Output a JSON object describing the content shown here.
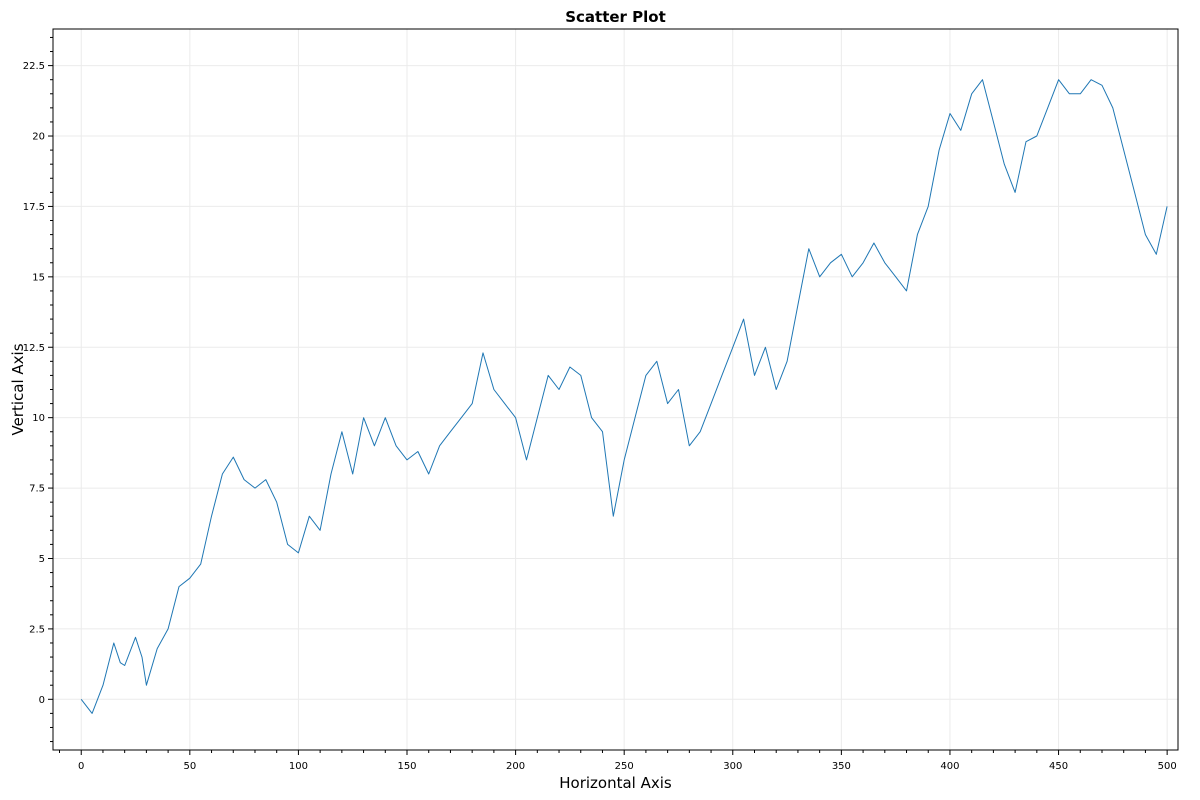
{
  "chart_data": {
    "type": "line",
    "title": "Scatter Plot",
    "xlabel": "Horizontal Axis",
    "ylabel": "Vertical Axis",
    "xlim": [
      -13,
      505
    ],
    "ylim": [
      -1.8,
      23.8
    ],
    "x_ticks": [
      0,
      50,
      100,
      150,
      200,
      250,
      300,
      350,
      400,
      450,
      500
    ],
    "y_ticks": [
      0,
      2.5,
      5,
      7.5,
      10,
      12.5,
      15,
      17.5,
      20,
      22.5
    ],
    "x_tick_labels": [
      "0",
      "50",
      "100",
      "150",
      "200",
      "250",
      "300",
      "350",
      "400",
      "450",
      "500"
    ],
    "y_tick_labels": [
      "0",
      "2.5",
      "5",
      "7.5",
      "10",
      "12.5",
      "15",
      "17.5",
      "20",
      "22.5"
    ],
    "grid": true,
    "series": [
      {
        "color": "#1f77b4",
        "x": [
          0,
          5,
          10,
          15,
          18,
          20,
          25,
          28,
          30,
          35,
          40,
          45,
          50,
          55,
          60,
          65,
          70,
          75,
          80,
          85,
          90,
          95,
          100,
          105,
          110,
          115,
          120,
          125,
          130,
          135,
          140,
          145,
          150,
          155,
          160,
          165,
          170,
          175,
          180,
          185,
          190,
          195,
          200,
          205,
          210,
          215,
          220,
          225,
          230,
          235,
          240,
          245,
          250,
          255,
          260,
          265,
          270,
          275,
          280,
          285,
          290,
          295,
          300,
          305,
          310,
          315,
          320,
          325,
          330,
          335,
          340,
          345,
          350,
          355,
          360,
          365,
          370,
          375,
          380,
          385,
          390,
          395,
          400,
          405,
          410,
          415,
          420,
          425,
          430,
          435,
          440,
          445,
          450,
          455,
          460,
          465,
          470,
          475,
          480,
          485,
          490,
          495,
          500
        ],
        "y": [
          0,
          -0.5,
          0.5,
          2.0,
          1.3,
          1.2,
          2.2,
          1.5,
          0.5,
          1.8,
          2.5,
          4.0,
          4.3,
          4.8,
          6.5,
          8.0,
          8.6,
          7.8,
          7.5,
          7.8,
          7.0,
          5.5,
          5.2,
          6.5,
          6.0,
          8.0,
          9.5,
          8.0,
          10.0,
          9.0,
          10.0,
          9.0,
          8.5,
          8.8,
          8.0,
          9.0,
          9.5,
          10.0,
          10.5,
          12.3,
          11.0,
          10.5,
          10.0,
          8.5,
          10.0,
          11.5,
          11.0,
          11.8,
          11.5,
          10.0,
          9.5,
          6.5,
          8.5,
          10.0,
          11.5,
          12.0,
          10.5,
          11.0,
          9.0,
          9.5,
          10.5,
          11.5,
          12.5,
          13.5,
          11.5,
          12.5,
          11.0,
          12.0,
          14.0,
          16.0,
          15.0,
          15.5,
          15.8,
          15.0,
          15.5,
          16.2,
          15.5,
          15.0,
          14.5,
          16.5,
          17.5,
          19.5,
          20.8,
          20.2,
          21.5,
          22.0,
          20.5,
          19.0,
          18.0,
          19.8,
          20.0,
          21.0,
          22.0,
          21.5,
          21.5,
          22.0,
          21.8,
          21.0,
          19.5,
          18.0,
          16.5,
          15.8,
          17.5
        ]
      }
    ]
  }
}
